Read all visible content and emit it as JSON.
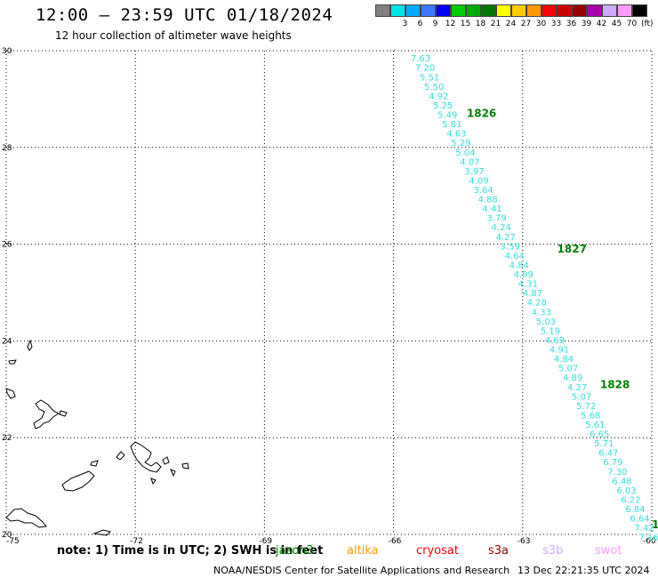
{
  "header": {
    "title": "12:00 – 23:59 UTC 01/18/2024",
    "subtitle": "12 hour collection of altimeter wave heights"
  },
  "colorbar": {
    "unit": "(ft)",
    "entries": [
      {
        "label": "",
        "color": "#808080"
      },
      {
        "label": "3",
        "color": "#00e6e6"
      },
      {
        "label": "6",
        "color": "#00aaff"
      },
      {
        "label": "9",
        "color": "#3c78ff"
      },
      {
        "label": "12",
        "color": "#0000ff"
      },
      {
        "label": "15",
        "color": "#00cc00"
      },
      {
        "label": "18",
        "color": "#00aa00"
      },
      {
        "label": "21",
        "color": "#007800"
      },
      {
        "label": "24",
        "color": "#ffff00"
      },
      {
        "label": "27",
        "color": "#ffcc00"
      },
      {
        "label": "30",
        "color": "#ff9900"
      },
      {
        "label": "33",
        "color": "#ff0000"
      },
      {
        "label": "36",
        "color": "#cc0000"
      },
      {
        "label": "39",
        "color": "#990000"
      },
      {
        "label": "42",
        "color": "#aa00aa"
      },
      {
        "label": "45",
        "color": "#ccaaff"
      },
      {
        "label": "70",
        "color": "#ff99ff"
      },
      {
        "label": "",
        "color": "#000000"
      }
    ]
  },
  "axes": {
    "lat_ticks": [
      "30",
      "28",
      "26",
      "24",
      "22",
      "20"
    ],
    "lon_ticks": [
      "-75",
      "-72",
      "-69",
      "-66",
      "-63",
      "-60"
    ],
    "lat_range": [
      20,
      30
    ],
    "lon_range": [
      -75,
      -60
    ]
  },
  "track": {
    "color": "#33dddd",
    "values": [
      "7.63",
      "7.20",
      "5.51",
      "5.50",
      "4.92",
      "5.25",
      "5.49",
      "5.81",
      "4.63",
      "5.29",
      "5.04",
      "4.07",
      "3.97",
      "4.09",
      "3.64",
      "4.88",
      "4.41",
      "3.79",
      "4.24",
      "4.27",
      "3.59",
      "4.64",
      "4.84",
      "4.99",
      "4.31",
      "4.87",
      "4.28",
      "4.33",
      "5.03",
      "5.19",
      "4.69",
      "4.91",
      "4.84",
      "5.07",
      "4.89",
      "4.27",
      "5.07",
      "5.72",
      "5.68",
      "5.61",
      "6.65",
      "5.71",
      "6.47",
      "6.79",
      "7.30",
      "6.48",
      "6.03",
      "6.22",
      "6.84",
      "6.64",
      "7.42",
      "7.16"
    ]
  },
  "pass_times": {
    "color": "#008000",
    "labels": [
      "1826",
      "1827",
      "1828",
      "1"
    ]
  },
  "notes": {
    "text": "note:  1) Time is in UTC;  2) SWH is in feet"
  },
  "satellites": [
    {
      "name": "jason3",
      "color": "#008000"
    },
    {
      "name": "altika",
      "color": "#ff9900"
    },
    {
      "name": "cryosat",
      "color": "#ff0000"
    },
    {
      "name": "s3a",
      "color": "#990000"
    },
    {
      "name": "s3b",
      "color": "#ccaaff"
    },
    {
      "name": "swot",
      "color": "#ff99ff"
    }
  ],
  "footer": {
    "credit": "NOAA/NESDIS Center for Satellite Applications and Research",
    "timestamp": "13 Dec 22:21:35 UTC 2024"
  }
}
